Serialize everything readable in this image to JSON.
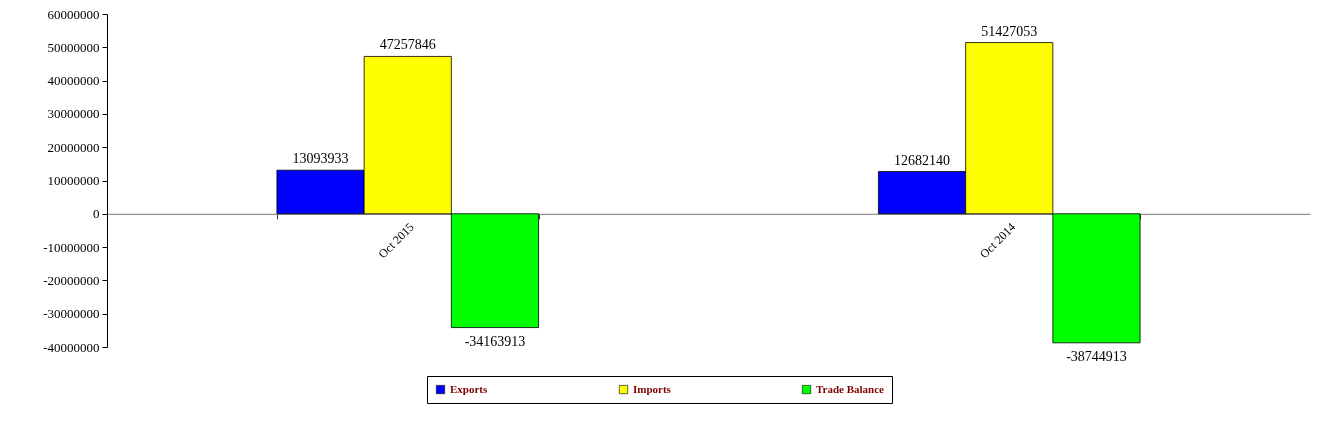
{
  "chart_data": {
    "type": "bar",
    "categories": [
      "Oct 2015",
      "Oct 2014"
    ],
    "series": [
      {
        "name": "Exports",
        "color": "#0000ff",
        "values": [
          13093933,
          12682140
        ]
      },
      {
        "name": "Imports",
        "color": "#ffff00",
        "values": [
          47257846,
          51427053
        ]
      },
      {
        "name": "Trade Balance",
        "color": "#00ff00",
        "values": [
          -34163913,
          -38744913
        ]
      }
    ],
    "ylim": [
      -40000000,
      60000000
    ],
    "yticks": [
      -40000000,
      -30000000,
      -20000000,
      -10000000,
      0,
      10000000,
      20000000,
      30000000,
      40000000,
      50000000,
      60000000
    ],
    "data_labels": true,
    "legend": "bottom",
    "grid": false
  }
}
